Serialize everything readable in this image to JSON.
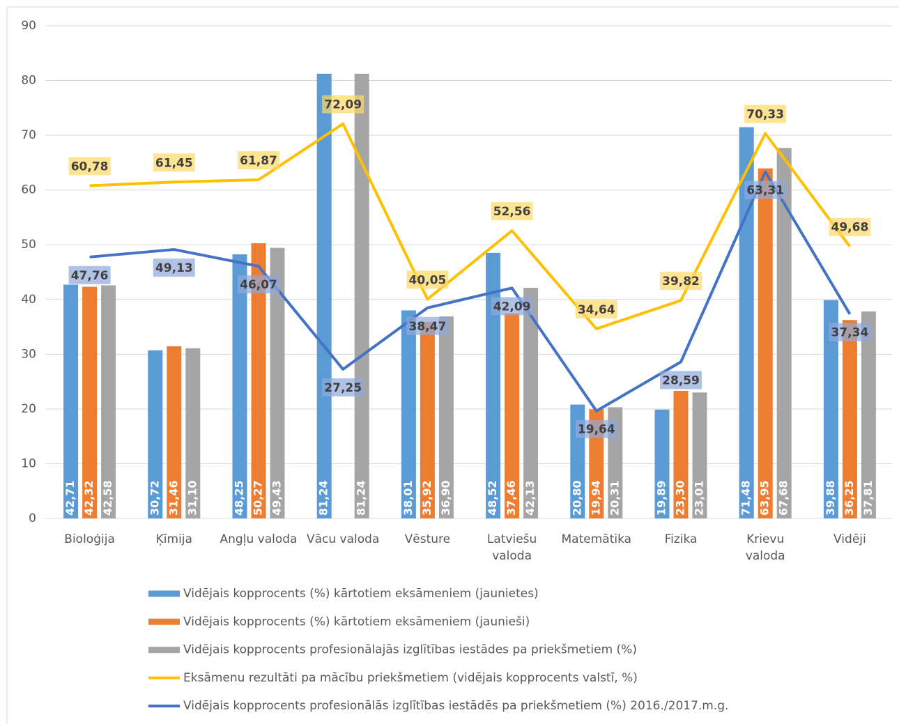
{
  "chart_data": {
    "type": "bar",
    "categories": [
      "Bioloģija",
      "Ķīmija",
      "Angļu valoda",
      "Vācu valoda",
      "Vēsture",
      "Latviešu valoda",
      "Matemātika",
      "Fizika",
      "Krievu valoda",
      "Vidēji"
    ],
    "ylim": [
      0,
      90
    ],
    "yticks": [
      0,
      10,
      20,
      30,
      40,
      50,
      60,
      70,
      80,
      90
    ],
    "grid": true,
    "series": [
      {
        "name": "Vidējais kopprocents (%) kārtotiem eksāmeniem (jaunietes)",
        "type": "bar",
        "color": "#5b9bd5",
        "values": [
          42.71,
          30.72,
          48.25,
          81.24,
          38.01,
          48.52,
          20.8,
          19.89,
          71.48,
          39.88
        ],
        "value_labels": [
          "42,71",
          "30,72",
          "48,25",
          "81,24",
          "38,01",
          "48,52",
          "20,80",
          "19,89",
          "71,48",
          "39,88"
        ]
      },
      {
        "name": "Vidējais kopprocents (%) kārtotiem eksāmeniem (jaunieši)",
        "type": "bar",
        "color": "#ed7d31",
        "values": [
          42.32,
          31.46,
          50.27,
          null,
          35.92,
          37.46,
          19.94,
          23.3,
          63.95,
          36.25
        ],
        "value_labels": [
          "42,32",
          "31,46",
          "50,27",
          null,
          "35,92",
          "37,46",
          "19,94",
          "23,30",
          "63,95",
          "36,25"
        ]
      },
      {
        "name": "Vidējais kopprocents profesionālajās izglītības iestādes pa priekšmetiem (%)",
        "type": "bar",
        "color": "#a5a5a5",
        "values": [
          42.58,
          31.1,
          49.43,
          81.24,
          36.9,
          42.13,
          20.31,
          23.01,
          67.68,
          37.81
        ],
        "value_labels": [
          "42,58",
          "31,10",
          "49,43",
          "81,24",
          "36,90",
          "42,13",
          "20,31",
          "23,01",
          "67,68",
          "37,81"
        ]
      },
      {
        "name": "Eksāmenu rezultāti pa mācību priekšmetiem  (vidējais kopprocents valstī, %)",
        "type": "line",
        "color": "#ffc000",
        "values": [
          60.78,
          61.45,
          61.87,
          72.09,
          40.05,
          52.56,
          34.64,
          39.82,
          70.33,
          49.68
        ],
        "value_labels": [
          "60,78",
          "61,45",
          "61,87",
          "72,09",
          "40,05",
          "52,56",
          "34,64",
          "39,82",
          "70,33",
          "49,68"
        ]
      },
      {
        "name": "Vidējais kopprocents profesionālās izglītības iestādēs pa priekšmetiem (%) 2016./2017.m.g.",
        "type": "line",
        "color": "#4472c4",
        "values": [
          47.76,
          49.13,
          46.07,
          27.25,
          38.47,
          42.09,
          19.64,
          28.59,
          63.31,
          37.34
        ],
        "value_labels": [
          "47,76",
          "49,13",
          "46,07",
          "27,25",
          "38,47",
          "42,09",
          "19,64",
          "28,59",
          "63,31",
          "37,34"
        ]
      }
    ]
  }
}
